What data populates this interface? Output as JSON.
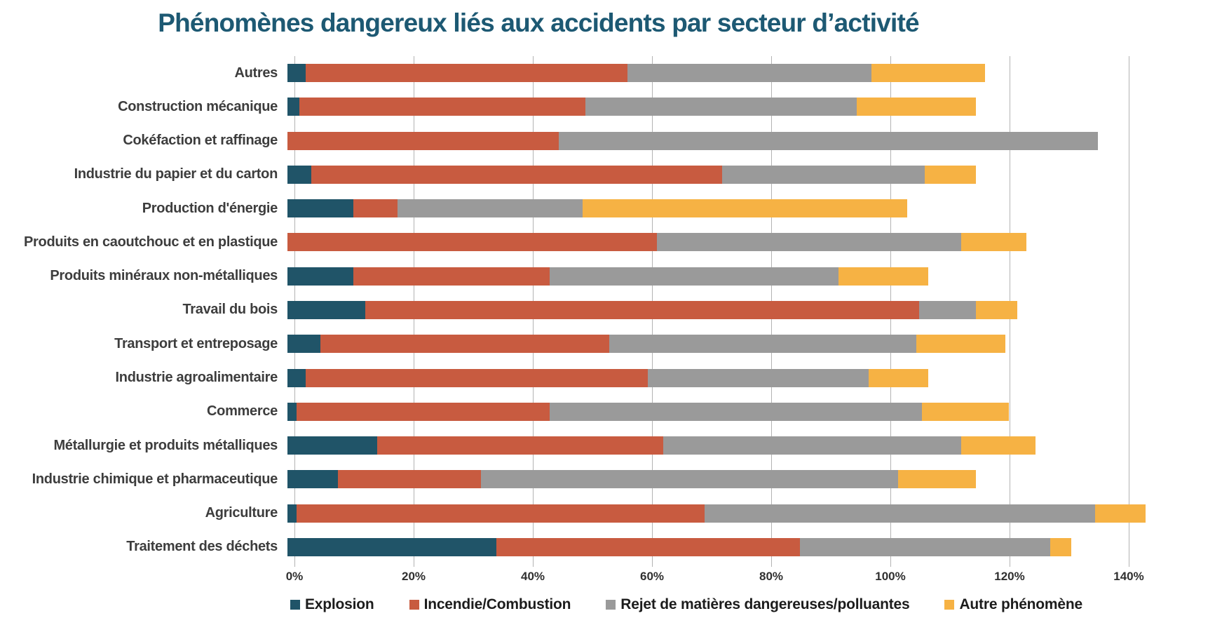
{
  "title": "Phénomènes dangereux liés aux accidents par secteur d’activité",
  "title_color": "#1d5973",
  "gridline_color": "#b3b3b3",
  "chart_data": {
    "type": "bar",
    "orientation": "horizontal",
    "stacked": true,
    "unit": "%",
    "title": "Phénomènes dangereux liés aux accidents par secteur d’activité",
    "xlabel": "",
    "ylabel": "",
    "xlim": [
      0,
      140
    ],
    "x_ticks": [
      "0%",
      "20%",
      "40%",
      "60%",
      "80%",
      "100%",
      "120%",
      "140%"
    ],
    "x_tick_values": [
      0,
      20,
      40,
      60,
      80,
      100,
      120,
      140
    ],
    "grid": "vertical",
    "legend_position": "bottom",
    "categories": [
      "Autres",
      "Construction mécanique",
      "Cokéfaction et raffinage",
      "Industrie du papier et du carton",
      "Production d'énergie",
      "Produits en caoutchouc et en plastique",
      "Produits minéraux non-métalliques",
      "Travail du bois",
      "Transport et entreposage",
      "Industrie agroalimentaire",
      "Commerce",
      "Métallurgie et produits métalliques",
      "Industrie chimique et pharmaceutique",
      "Agriculture",
      "Traitement des déchets"
    ],
    "series": [
      {
        "name": "Explosion",
        "color": "#205468",
        "values": [
          3,
          2,
          0,
          4,
          11,
          0,
          11,
          13,
          5.5,
          3,
          1.5,
          15,
          8.5,
          1.5,
          35
        ]
      },
      {
        "name": "Incendie/Combustion",
        "color": "#c85b40",
        "values": [
          54,
          48,
          45.5,
          69,
          7.5,
          62,
          33,
          93,
          48.5,
          57.5,
          42.5,
          48,
          24,
          68.5,
          51
        ]
      },
      {
        "name": "Rejet de matières dangereuses/polluantes",
        "color": "#9a9a9a",
        "values": [
          41,
          45.5,
          90.5,
          34,
          31,
          51,
          48.5,
          9.5,
          51.5,
          37,
          62.5,
          50,
          70,
          65.5,
          42
        ]
      },
      {
        "name": "Autre phénomène",
        "color": "#f6b244",
        "values": [
          19,
          20,
          0,
          8.5,
          54.5,
          11,
          15,
          7,
          15,
          10,
          14.5,
          12.5,
          13,
          8.5,
          3.5
        ]
      }
    ]
  }
}
